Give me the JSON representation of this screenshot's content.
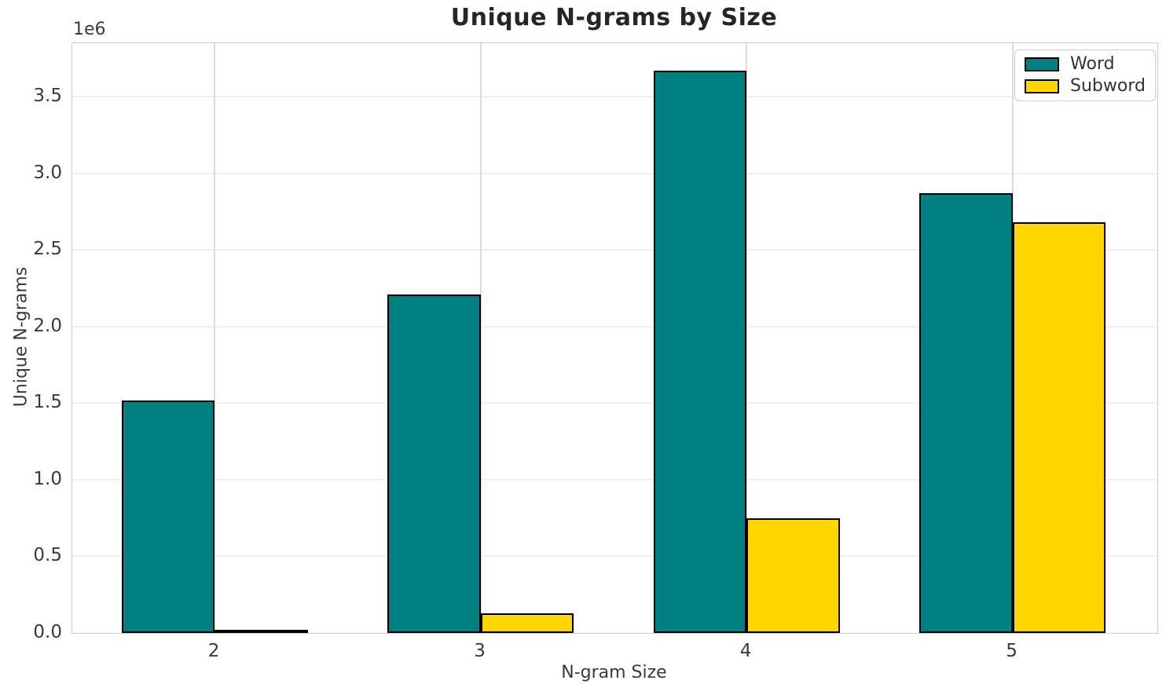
{
  "chart_data": {
    "type": "bar",
    "title": "Unique N-grams by Size",
    "xlabel": "N-gram Size",
    "ylabel": "Unique N-grams",
    "offset_text": "1e6",
    "categories": [
      "2",
      "3",
      "4",
      "5"
    ],
    "x_values": [
      2,
      3,
      4,
      5
    ],
    "series": [
      {
        "name": "Word",
        "color": "#008080",
        "values": [
          1520000,
          2210000,
          3670000,
          2870000
        ]
      },
      {
        "name": "Subword",
        "color": "#FFD700",
        "values": [
          15000,
          130000,
          750000,
          2680000
        ]
      }
    ],
    "bar_edge_color": "#000000",
    "bar_width": 0.35,
    "ylim": [
      0,
      3850000
    ],
    "xlim": [
      1.465,
      5.545
    ],
    "yticks": [
      "0.0",
      "0.5",
      "1.0",
      "1.5",
      "2.0",
      "2.5",
      "3.0",
      "3.5"
    ],
    "ytick_values": [
      0,
      500000,
      1000000,
      1500000,
      2000000,
      2500000,
      3000000,
      3500000
    ],
    "grid": true,
    "legend_position": "upper right",
    "background_color": "#ffffff"
  }
}
